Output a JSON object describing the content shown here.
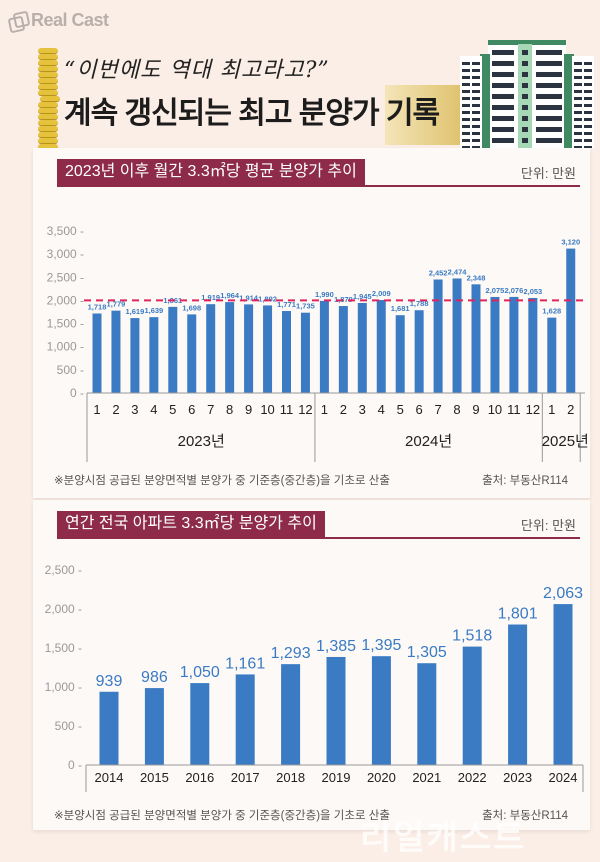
{
  "brand": {
    "logo_text": "Real Cast",
    "watermark": "리얼캐스트"
  },
  "header": {
    "quote": "“이번에도 역대 최고라고?”",
    "title": "계속 갱신되는 최고 분양가 기록"
  },
  "colors": {
    "bar": "#3a7bc4",
    "label": "#3a7bc4",
    "reference_line": "#e0245e",
    "section_header": "#8e2b4a",
    "axis_text": "#999999"
  },
  "chart_data": [
    {
      "type": "bar",
      "title": "2023년 이후 월간 3.3㎡당 평균 분양가 추이",
      "unit_label": "단위: 만원",
      "ylim": [
        0,
        3500
      ],
      "yticks": [
        0,
        500,
        1000,
        1500,
        2000,
        2500,
        3000,
        3500
      ],
      "ytick_labels": [
        "0",
        "500",
        "1,000",
        "1,500",
        "2,000",
        "2,500",
        "3,000",
        "3,500"
      ],
      "reference_line": 2000,
      "categories": [
        "1",
        "2",
        "3",
        "4",
        "5",
        "6",
        "7",
        "8",
        "9",
        "10",
        "11",
        "12",
        "1",
        "2",
        "3",
        "4",
        "5",
        "6",
        "7",
        "8",
        "9",
        "10",
        "11",
        "12",
        "1",
        "2"
      ],
      "groups": [
        {
          "label": "2023년",
          "count": 12
        },
        {
          "label": "2024년",
          "count": 12
        },
        {
          "label": "2025년",
          "count": 2
        }
      ],
      "values": [
        1718,
        1779,
        1619,
        1639,
        1861,
        1698,
        1919,
        1964,
        1914,
        1892,
        1771,
        1735,
        1990,
        1879,
        1945,
        2009,
        1681,
        1788,
        2452,
        2474,
        2348,
        2075,
        2076,
        2053,
        1628,
        3120
      ],
      "value_labels": [
        "1,718",
        "1,779",
        "1,619",
        "1,639",
        "1,861",
        "1,698",
        "1,919",
        "1,964",
        "1,914",
        "1,892",
        "1,771",
        "1,735",
        "1,990",
        "1,879",
        "1,945",
        "2,009",
        "1,681",
        "1,788",
        "2,452",
        "2,474",
        "2,348",
        "2,075",
        "2,076",
        "2,053",
        "1,628",
        "3,120"
      ],
      "note": "※분양시점 공급된 분양면적별 분양가 중 기준층(중간층)을 기초로 산출",
      "source": "출처: 부동산R114"
    },
    {
      "type": "bar",
      "title": "연간 전국 아파트 3.3㎡당 분양가 추이",
      "unit_label": "단위: 만원",
      "ylim": [
        0,
        2500
      ],
      "yticks": [
        0,
        500,
        1000,
        1500,
        2000,
        2500
      ],
      "ytick_labels": [
        "0",
        "500",
        "1,000",
        "1,500",
        "2,000",
        "2,500"
      ],
      "categories": [
        "2014",
        "2015",
        "2016",
        "2017",
        "2018",
        "2019",
        "2020",
        "2021",
        "2022",
        "2023",
        "2024"
      ],
      "values": [
        939,
        986,
        1050,
        1161,
        1293,
        1385,
        1395,
        1305,
        1518,
        1801,
        2063
      ],
      "value_labels": [
        "939",
        "986",
        "1,050",
        "1,161",
        "1,293",
        "1,385",
        "1,395",
        "1,305",
        "1,518",
        "1,801",
        "2,063"
      ],
      "note": "※분양시점 공급된 분양면적별 분양가 중 기준층(중간층)을 기초로 산출",
      "source": "출처: 부동산R114"
    }
  ]
}
